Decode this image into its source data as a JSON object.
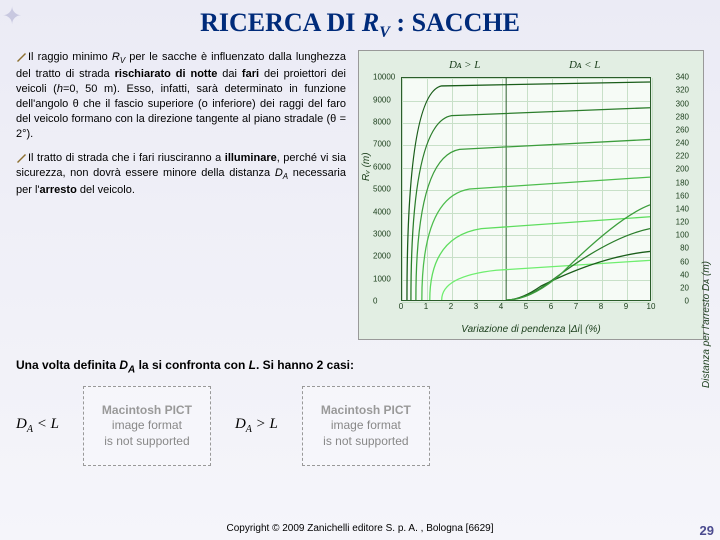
{
  "title_pre": "RICERCA DI ",
  "title_rv": "R",
  "title_rv_sub": "V",
  "title_post": " :  SACCHE",
  "para1_a": "Il raggio minimo ",
  "para1_rv": "R",
  "para1_rv_sub": "V",
  "para1_b": " per le sacche è influenzato dalla lunghezza del tratto di strada ",
  "para1_bold1": "rischiarato di notte",
  "para1_c": " dai ",
  "para1_bold2": "fari",
  "para1_d": " dei proiettori dei veicoli (",
  "para1_ital1": "h",
  "para1_e": "=0, 50 m). Esso, infatti, sarà determinato in funzione dell'angolo θ che il fascio superiore (o inferiore) dei raggi del faro del veicolo formano con la direzione tangente al piano stradale (θ = 2°).",
  "para2_a": "Il tratto di strada che i fari riusciranno a ",
  "para2_bold1": "illuminare",
  "para2_b": ", perché vi sia sicurezza, non dovrà essere minore della distanza ",
  "para2_da": "D",
  "para2_da_sub": "A",
  "para2_c": " necessaria per l'",
  "para2_bold2": "arresto",
  "para2_d": " del veicolo.",
  "confronta_a": "Una volta definita ",
  "confronta_da": "D",
  "confronta_da_sub": "A",
  "confronta_b": " la si confronta con ",
  "confronta_L": "L",
  "confronta_c": ". Si hanno 2 casi:",
  "case1": "D",
  "case1_sub": "A",
  "case1_rest": " < L",
  "case2": "D",
  "case2_sub": "A",
  "case2_rest": " > L",
  "pict_line1": "Macintosh PICT",
  "pict_line2": "image format",
  "pict_line3": "is not supported",
  "copyright": "Copyright © 2009 Zanichelli editore S. p. A. , Bologna [6629]",
  "pagenum": "29",
  "chart": {
    "ylabel_left": "Rᵥ (m)",
    "ylabel_right": "Distanza per l'arresto Dᴀ (m)",
    "xlabel": "Variazione di pendenza |Δi| (%)",
    "region_left": "Dᴀ > L",
    "region_right": "Dᴀ < L",
    "xticks": [
      "0",
      "1",
      "2",
      "3",
      "4",
      "5",
      "6",
      "7",
      "8",
      "9",
      "10"
    ],
    "yticks_left": [
      "10000",
      "9000",
      "8000",
      "7000",
      "6000",
      "5000",
      "4000",
      "3000",
      "2000",
      "1000",
      "0"
    ],
    "yticks_right": [
      "340",
      "320",
      "300",
      "280",
      "260",
      "240",
      "220",
      "200",
      "180",
      "160",
      "140",
      "120",
      "100",
      "80",
      "60",
      "40",
      "20",
      "0"
    ],
    "curve_colors": [
      "#1a5d1a",
      "#2b7d2b",
      "#3c9d3c",
      "#4dbd4d",
      "#5edd5e",
      "#6fee6f"
    ],
    "bg": "#e2eee3",
    "plot_bg": "#f6fbf6",
    "grid": "#c8e0c8",
    "border": "#2b5d2b"
  }
}
